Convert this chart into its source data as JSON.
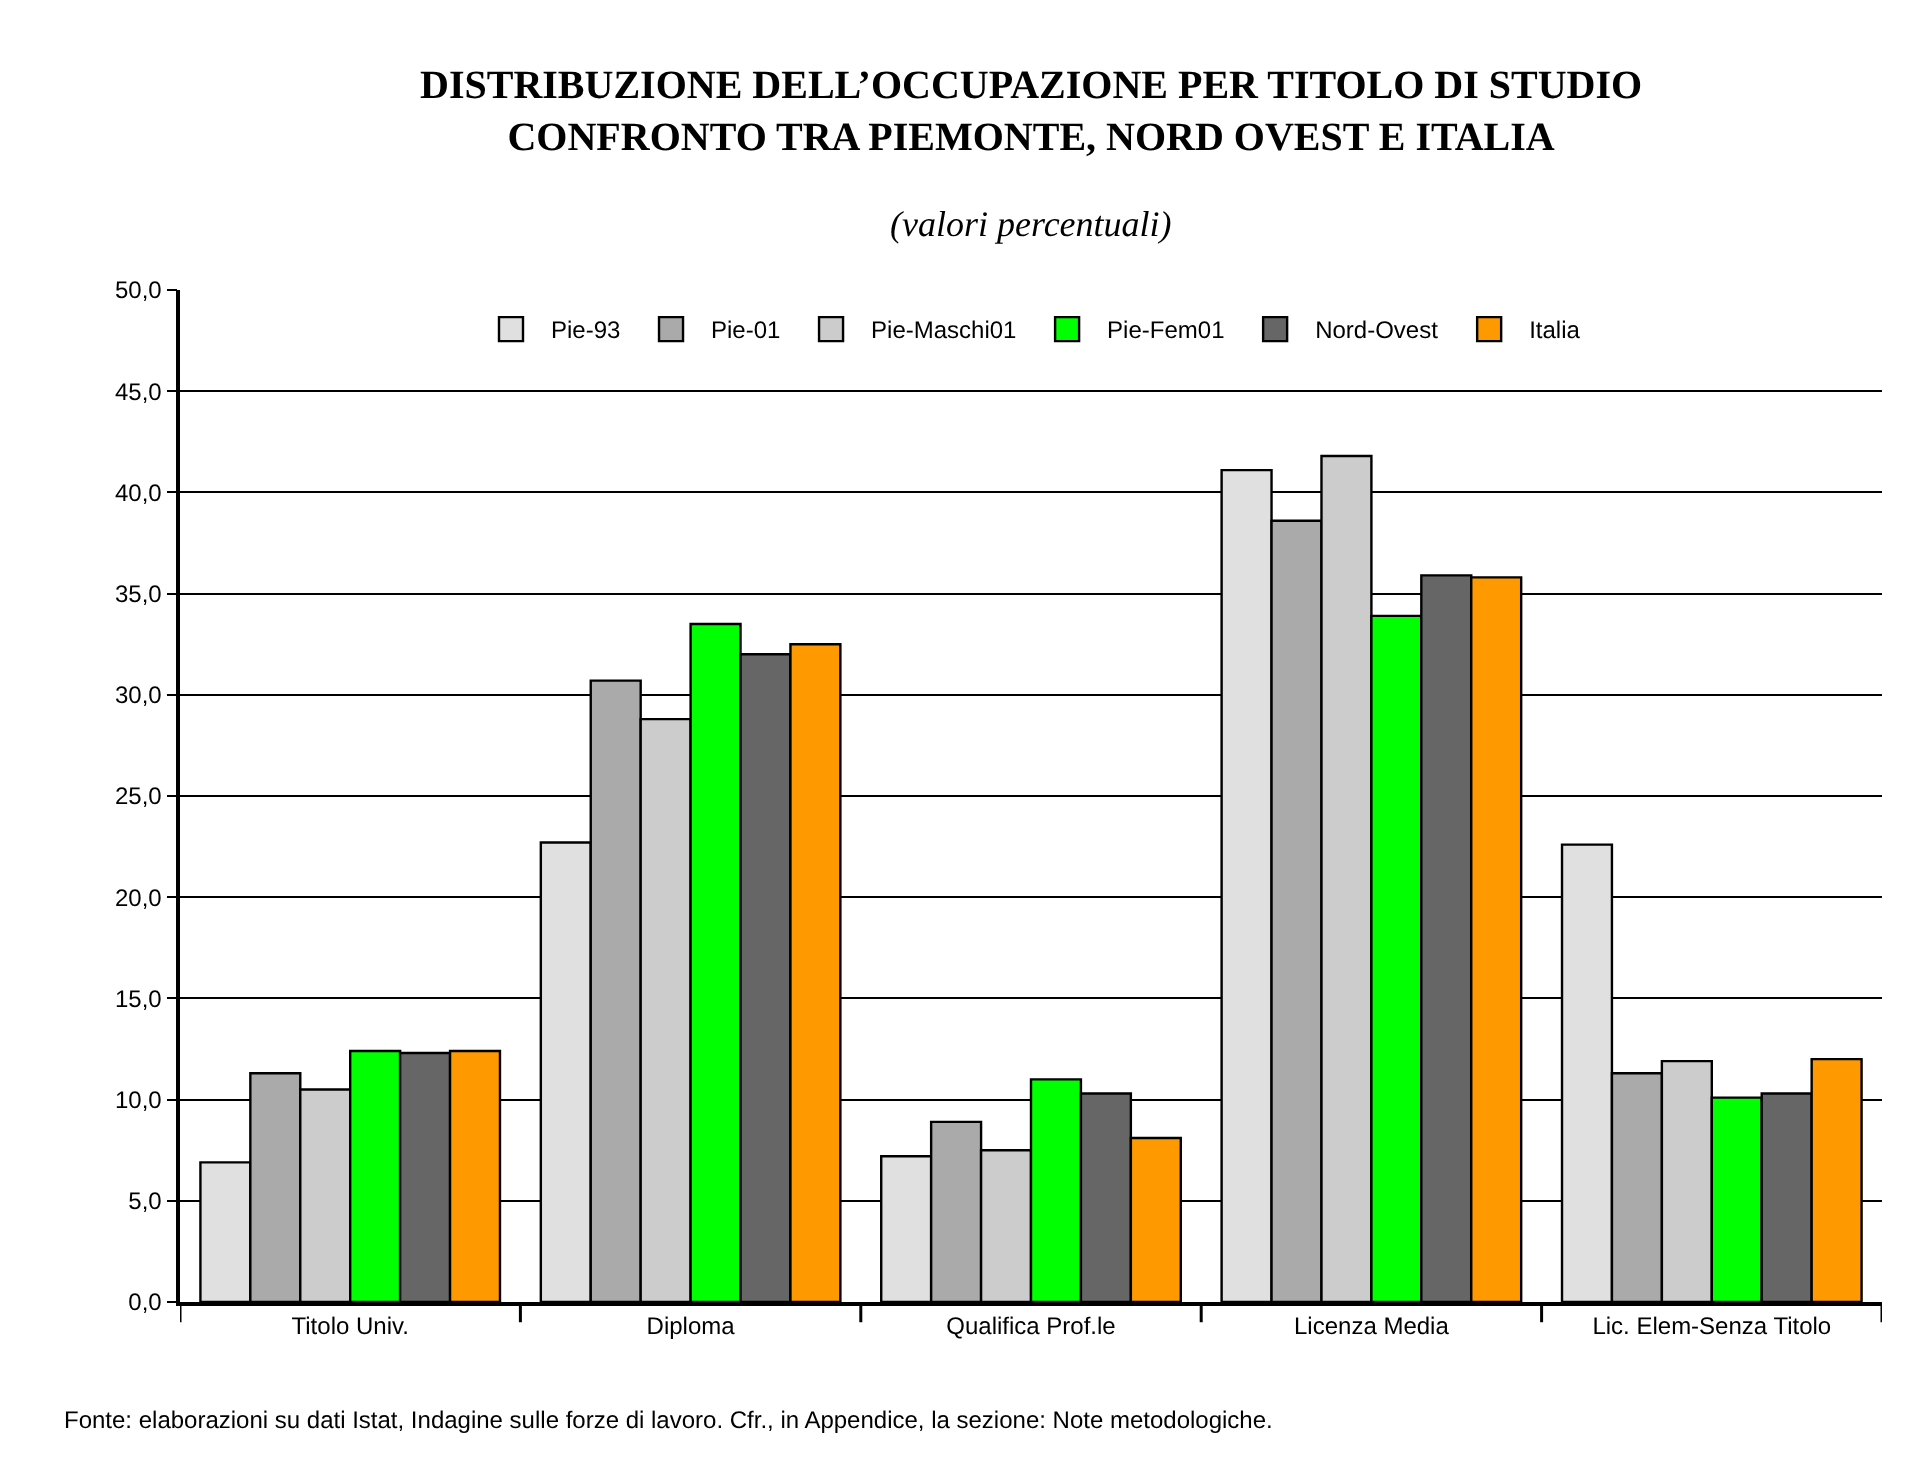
{
  "chart_data": {
    "type": "bar",
    "title": "DISTRIBUZIONE DELL’OCCUPAZIONE PER TITOLO DI STUDIO\nCONFRONTO TRA PIEMONTE, NORD OVEST E ITALIA",
    "subtitle": "(valori percentuali)",
    "categories": [
      "Titolo Univ.",
      "Diploma",
      "Qualifica Prof.le",
      "Licenza Media",
      "Lic. Elem-Senza Titolo"
    ],
    "series": [
      {
        "name": "Pie-93",
        "color": "#e0e0e0",
        "values": [
          6.9,
          22.7,
          7.2,
          41.1,
          22.6
        ]
      },
      {
        "name": "Pie-01",
        "color": "#aaaaaa",
        "values": [
          11.3,
          30.7,
          8.9,
          38.6,
          11.3
        ]
      },
      {
        "name": "Pie-Maschi01",
        "color": "#cccccc",
        "values": [
          10.5,
          28.8,
          7.5,
          41.8,
          11.9
        ]
      },
      {
        "name": "Pie-Fem01",
        "color": "#00ff00",
        "values": [
          12.4,
          33.5,
          11.0,
          33.9,
          10.1
        ]
      },
      {
        "name": "Nord-Ovest",
        "color": "#666666",
        "values": [
          12.3,
          32.0,
          10.3,
          35.9,
          10.3
        ]
      },
      {
        "name": "Italia",
        "color": "#ff9900",
        "values": [
          12.4,
          32.5,
          8.1,
          35.8,
          12.0
        ]
      }
    ],
    "ylim": [
      0,
      50
    ],
    "yticks": [
      {
        "value": 0,
        "label": "0,0"
      },
      {
        "value": 5,
        "label": "5,0"
      },
      {
        "value": 10,
        "label": "10,0"
      },
      {
        "value": 15,
        "label": "15,0"
      },
      {
        "value": 20,
        "label": "20,0"
      },
      {
        "value": 25,
        "label": "25,0"
      },
      {
        "value": 30,
        "label": "30,0"
      },
      {
        "value": 35,
        "label": "35,0"
      },
      {
        "value": 40,
        "label": "40,0"
      },
      {
        "value": 45,
        "label": "45,0"
      },
      {
        "value": 50,
        "label": "50,0"
      }
    ],
    "grid": "y",
    "legend": "top",
    "annotations": [
      "Fonte: elaborazioni su dati Istat, Indagine sulle forze di lavoro. Cfr., in Appendice, la sezione: Note metodologiche."
    ]
  }
}
